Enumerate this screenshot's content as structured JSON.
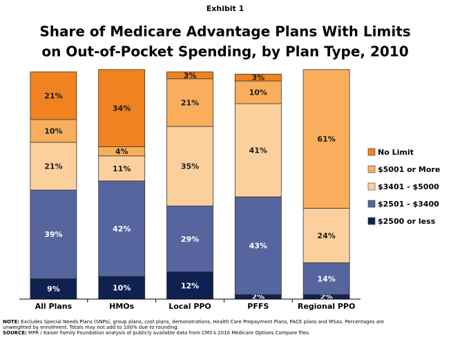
{
  "chart_data": {
    "type": "bar",
    "stacked": true,
    "subtitle": "Exhibit 1",
    "title": [
      "Share of Medicare Advantage Plans With Limits",
      "on Out-of-Pocket Spending, by Plan Type, 2010"
    ],
    "categories": [
      "All Plans",
      "HMOs",
      "Local PPO",
      "PFFS",
      "Regional PPO"
    ],
    "ylim": [
      0,
      100
    ],
    "legend": "right",
    "series": [
      {
        "name": "$2500 or less",
        "color": "#0f2150",
        "label_color": "#ffffff",
        "values": [
          9,
          10,
          12,
          2,
          2
        ],
        "value_labels": [
          "9%",
          "10%",
          "12%",
          "2%",
          "2%"
        ]
      },
      {
        "name": "$2501 - $3400",
        "color": "#56659e",
        "label_color": "#ffffff",
        "values": [
          39,
          42,
          29,
          43,
          14
        ],
        "value_labels": [
          "39%",
          "42%",
          "29%",
          "43%",
          "14%"
        ]
      },
      {
        "name": "$3401 - $5000",
        "color": "#fcd09c",
        "label_color": "#1a1a1a",
        "values": [
          21,
          11,
          35,
          41,
          24
        ],
        "value_labels": [
          "21%",
          "11%",
          "35%",
          "41%",
          "24%"
        ]
      },
      {
        "name": "$5001 or More",
        "color": "#f8ae5c",
        "label_color": "#1a1a1a",
        "values": [
          10,
          4,
          21,
          10,
          61
        ],
        "value_labels": [
          "10%",
          "4%",
          "21%",
          "10%",
          "61%"
        ]
      },
      {
        "name": "No Limit",
        "color": "#f0831f",
        "label_color": "#1a1a1a",
        "values": [
          21,
          34,
          3,
          3,
          null
        ],
        "value_labels": [
          "21%",
          "34%",
          "3%",
          "3%",
          null
        ]
      }
    ]
  },
  "notes": [
    {
      "label": "NOTE:",
      "lines": [
        "Excludes Special Needs Plans (SNPs), group plans, cost plans, demonstrations, Health Care Prepayment Plans, PACE plans and MSAs.  Percentages are",
        "unweighted by enrollment. Totals may not add to 100% due to rounding."
      ]
    },
    {
      "label": "SOURCE:",
      "lines": [
        "MPR / Kaiser Family Foundation analysis of publicly available data from CMS's 2010 Medicare Options Compare files."
      ]
    }
  ]
}
